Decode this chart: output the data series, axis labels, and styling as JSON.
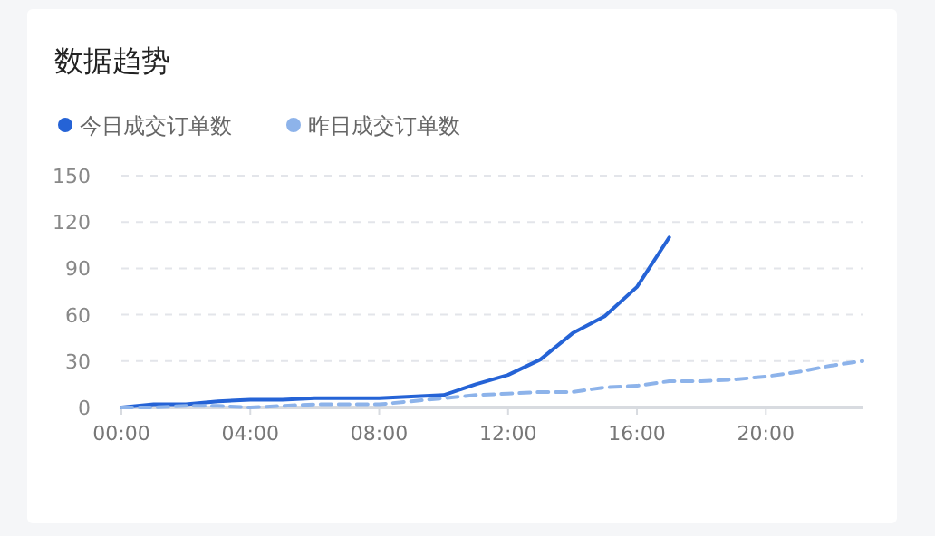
{
  "chart_data": {
    "type": "line",
    "title": "数据趋势",
    "x": [
      0,
      1,
      2,
      3,
      4,
      5,
      6,
      7,
      8,
      9,
      10,
      11,
      12,
      13,
      14,
      15,
      16,
      17,
      18,
      19,
      20,
      21,
      22,
      23
    ],
    "series": [
      {
        "name": "今日成交订单数",
        "color": "#2563d6",
        "line_style": "solid",
        "values": [
          0,
          2,
          2,
          4,
          5,
          5,
          6,
          6,
          6,
          7,
          8,
          15,
          21,
          31,
          48,
          59,
          78,
          110,
          null,
          null,
          null,
          null,
          null,
          null
        ]
      },
      {
        "name": "昨日成交订单数",
        "color": "#8db3ea",
        "line_style": "dashed",
        "values": [
          0,
          0,
          1,
          1,
          0,
          1,
          2,
          2,
          2,
          4,
          6,
          8,
          9,
          10,
          10,
          13,
          14,
          17,
          17,
          18,
          20,
          23,
          27,
          30
        ]
      }
    ],
    "xlim": [
      0,
      23
    ],
    "xticks": [
      {
        "value": 0,
        "label": "00:00"
      },
      {
        "value": 4,
        "label": "04:00"
      },
      {
        "value": 8,
        "label": "08:00"
      },
      {
        "value": 12,
        "label": "12:00"
      },
      {
        "value": 16,
        "label": "16:00"
      },
      {
        "value": 20,
        "label": "20:00"
      }
    ],
    "ylim": [
      0,
      150
    ],
    "yticks": [
      0,
      30,
      60,
      90,
      120,
      150
    ],
    "grid": "y",
    "legend": "top left",
    "marker": "none"
  }
}
